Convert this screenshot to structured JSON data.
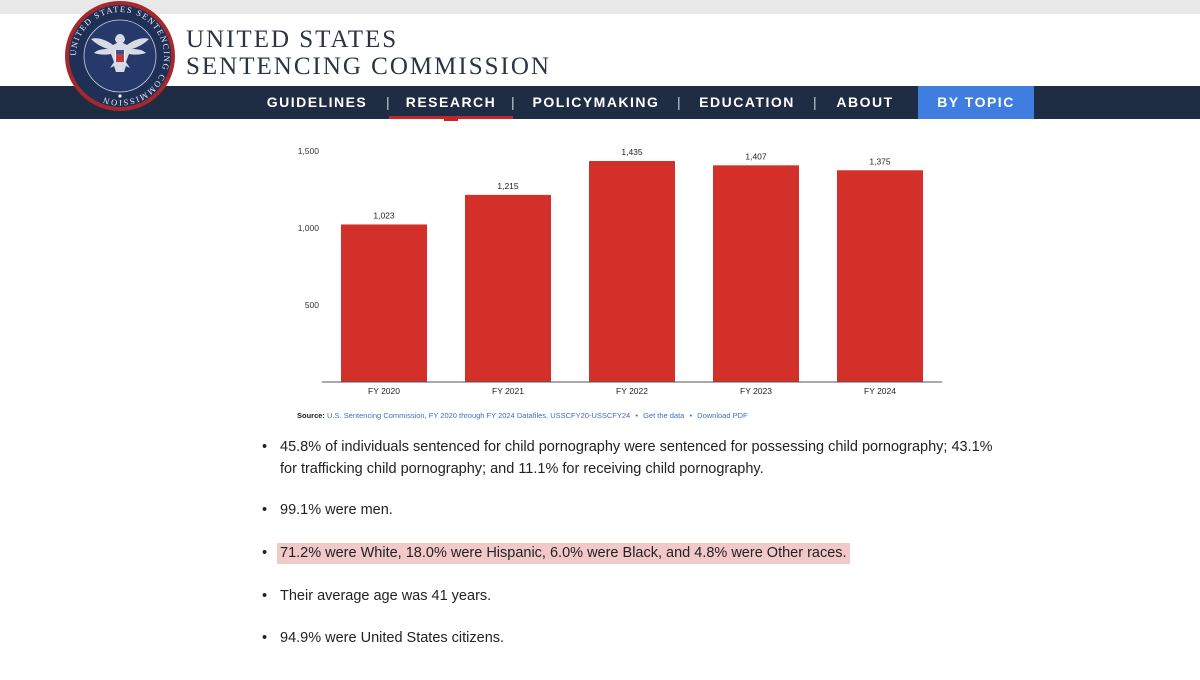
{
  "header": {
    "seal_name": "seal-icon",
    "seal_text": "UNITED STATES SENTENCING COMMISSION",
    "brand_line1": "UNITED STATES",
    "brand_line2": "SENTENCING COMMISSION"
  },
  "nav": {
    "items": [
      {
        "label": "GUIDELINES"
      },
      {
        "label": "RESEARCH"
      },
      {
        "label": "POLICYMAKING"
      },
      {
        "label": "EDUCATION"
      },
      {
        "label": "ABOUT"
      },
      {
        "label": "BY TOPIC"
      }
    ],
    "separator": "|",
    "active": "RESEARCH"
  },
  "colors": {
    "navy": "#1e2d44",
    "accent_red": "#c4262e",
    "bar_red": "#d3302a",
    "topic_blue": "#3f7de0",
    "highlight": "#f2c9c9"
  },
  "chart_data": {
    "type": "bar",
    "categories": [
      "FY 2020",
      "FY 2021",
      "FY 2022",
      "FY 2023",
      "FY 2024"
    ],
    "values": [
      1023,
      1215,
      1435,
      1407,
      1375
    ],
    "value_labels": [
      "1,023",
      "1,215",
      "1,435",
      "1,407",
      "1,375"
    ],
    "yticks": [
      500,
      1000,
      1500
    ],
    "ytick_labels": [
      "500",
      "1,000",
      "1,500"
    ],
    "ylim": [
      0,
      1500
    ],
    "title": "",
    "xlabel": "",
    "ylabel": "",
    "grid": false
  },
  "source": {
    "label": "Source:",
    "text": "U.S. Sentencing Commission, FY 2020 through FY 2024 Datafiles, USSCFY20-USSCFY24",
    "dot": "•",
    "get_data": "Get the data",
    "download": "Download PDF"
  },
  "bullets": [
    {
      "text": "45.8% of individuals sentenced for child pornography were sentenced for possessing child pornography; 43.1% for trafficking child pornography; and 11.1% for receiving child pornography.",
      "highlighted": false
    },
    {
      "text": "99.1% were men.",
      "highlighted": false
    },
    {
      "text": "71.2% were White, 18.0% were Hispanic, 6.0% were Black, and 4.8% were Other races.",
      "highlighted": true
    },
    {
      "text": "Their average age was 41 years.",
      "highlighted": false
    },
    {
      "text": "94.9% were United States citizens.",
      "highlighted": false
    }
  ],
  "bullet_char": "•"
}
